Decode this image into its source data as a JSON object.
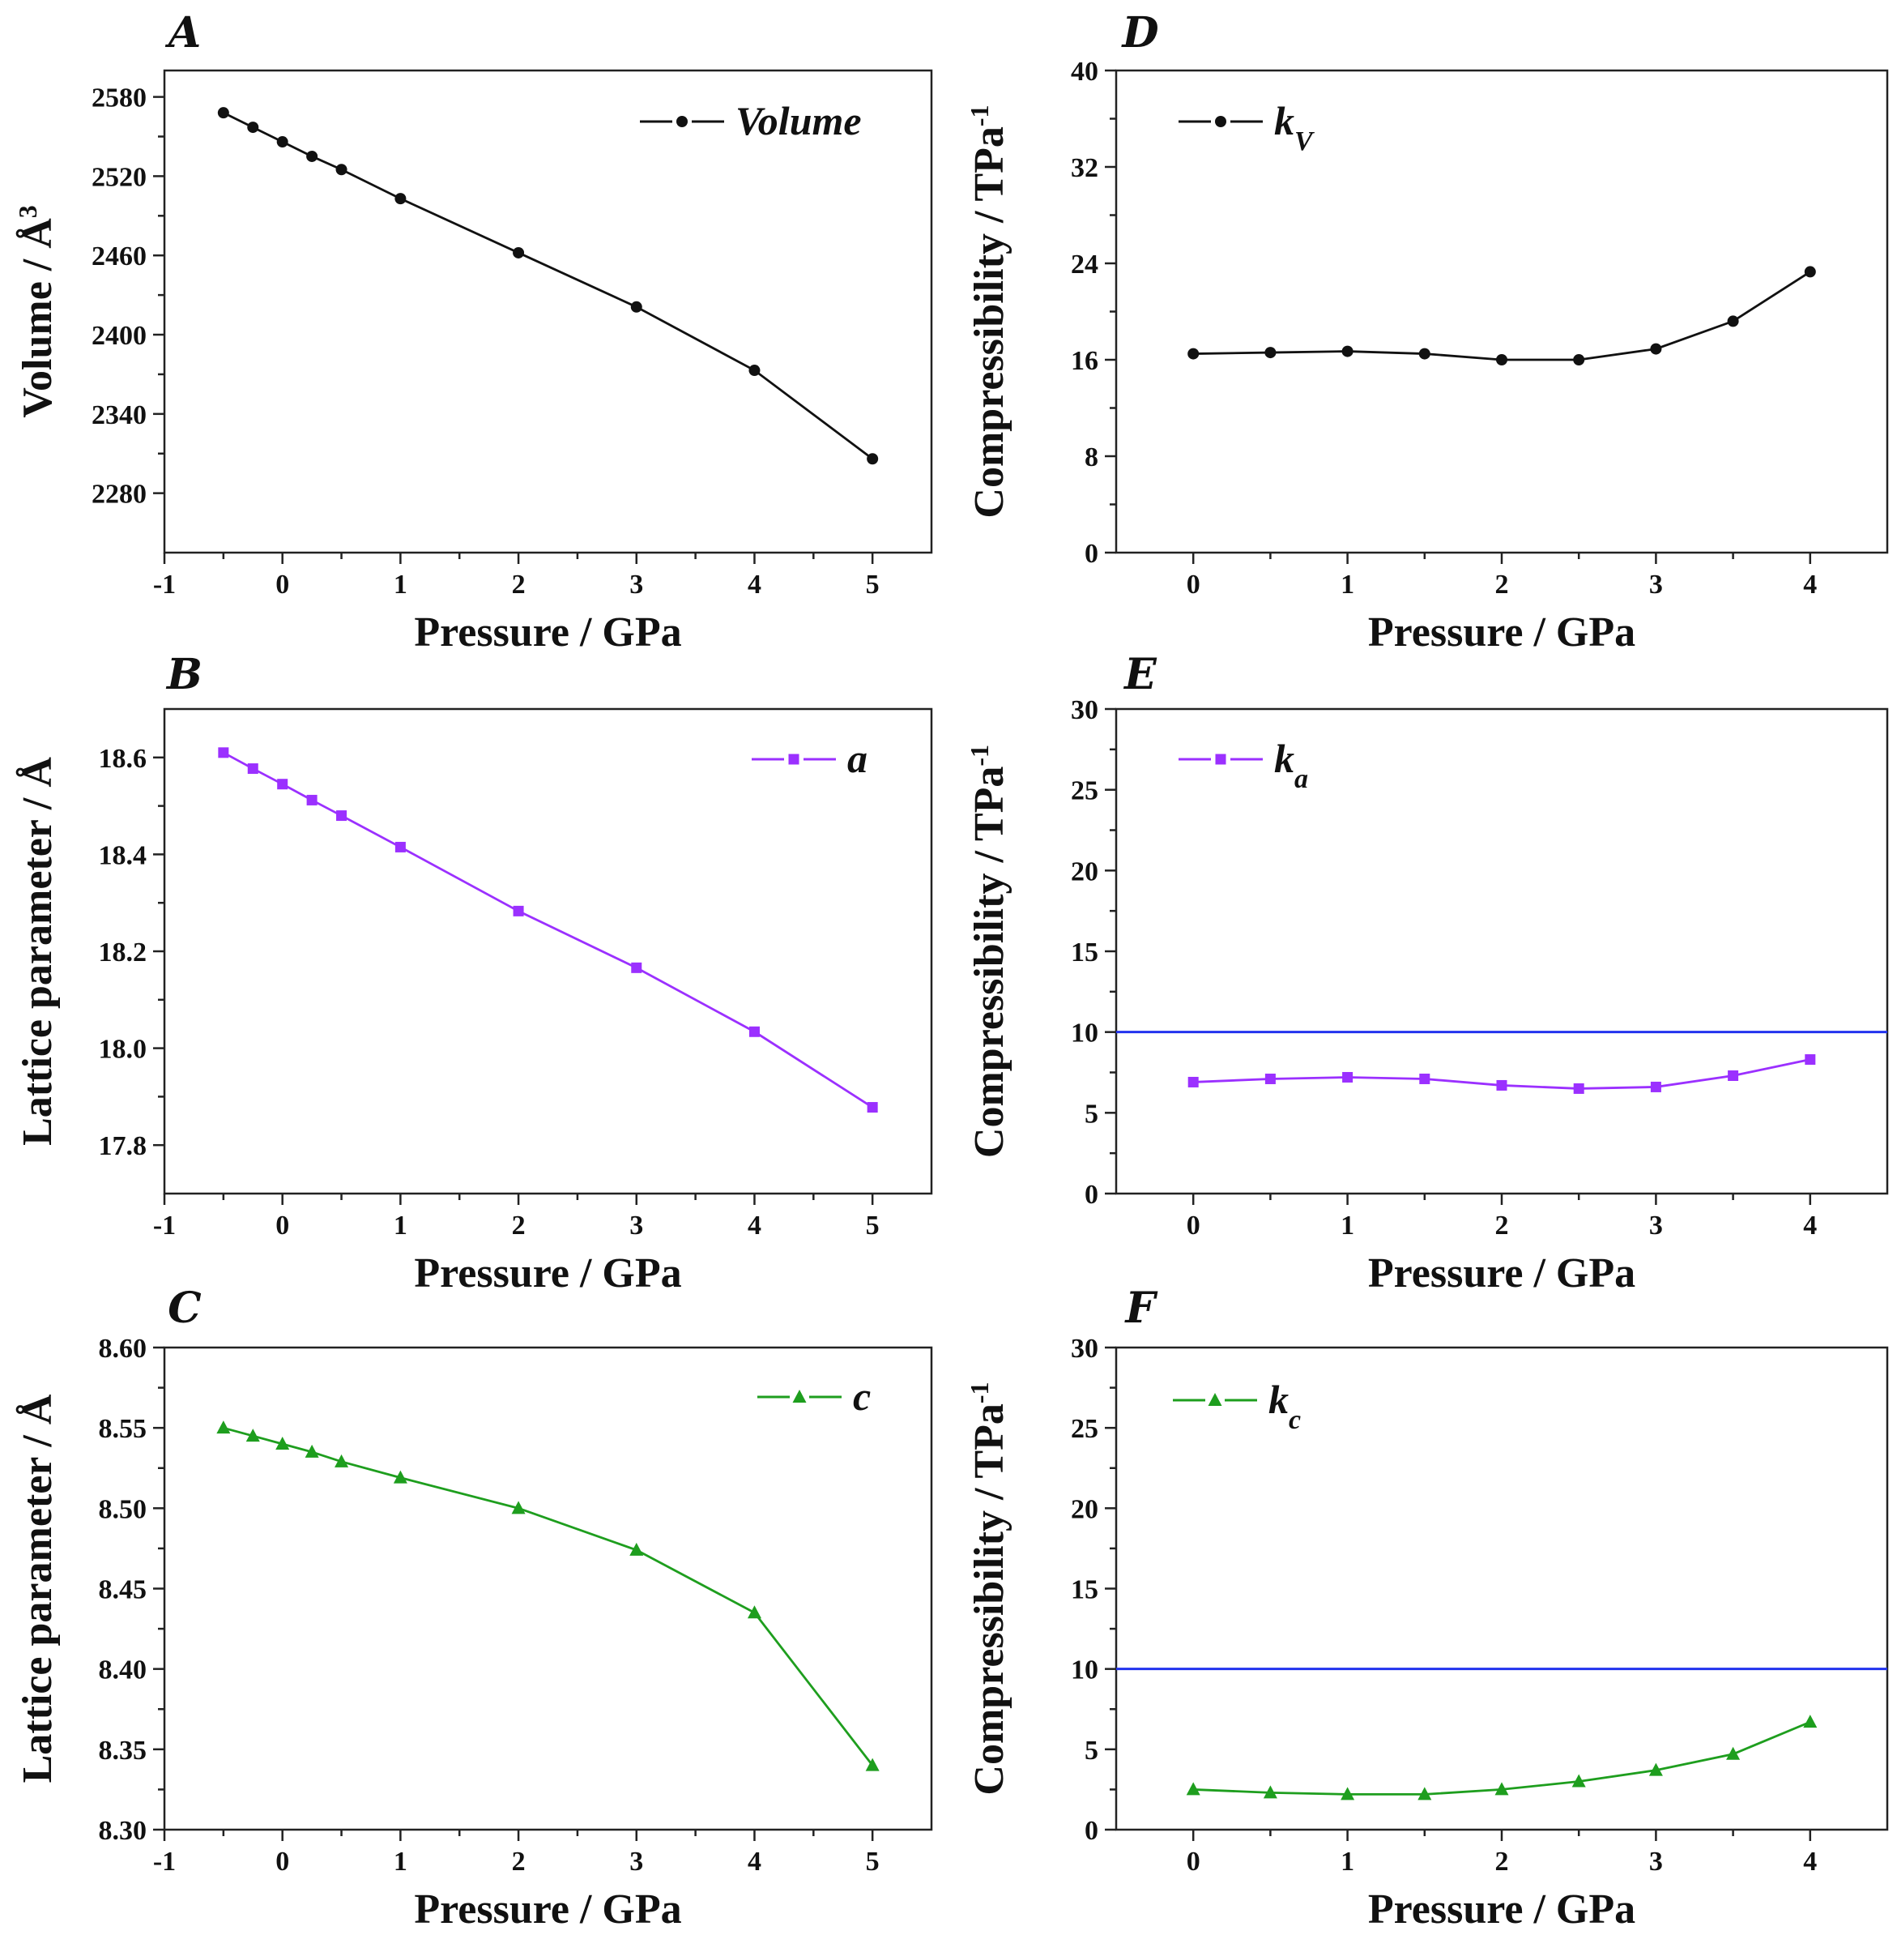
{
  "chart_data": [
    {
      "panel": "A",
      "type": "line",
      "xlabel": "Pressure / GPa",
      "ylabel": "Volume / Å",
      "ylabel_sup": "3",
      "xlim": [
        -1,
        5.5
      ],
      "ylim": [
        2235,
        2600
      ],
      "xticks": [
        -1,
        0,
        1,
        2,
        3,
        4,
        5
      ],
      "yticks": [
        2280,
        2340,
        2400,
        2460,
        2520,
        2580
      ],
      "series": [
        {
          "name": "Volume",
          "legend_sub": "",
          "color": "#111111",
          "marker": "circle",
          "x": [
            -0.5,
            -0.25,
            0,
            0.25,
            0.5,
            1,
            2,
            3,
            4,
            5
          ],
          "y": [
            2568,
            2557,
            2546,
            2535,
            2525,
            2503,
            2462,
            2421,
            2373,
            2306
          ]
        }
      ]
    },
    {
      "panel": "B",
      "type": "line",
      "xlabel": "Pressure / GPa",
      "ylabel": "Lattice parameter / Å",
      "ylabel_sup": "",
      "xlim": [
        -1,
        5.5
      ],
      "ylim": [
        17.7,
        18.7
      ],
      "xticks": [
        -1,
        0,
        1,
        2,
        3,
        4,
        5
      ],
      "yticks": [
        17.8,
        18.0,
        18.2,
        18.4,
        18.6
      ],
      "series": [
        {
          "name": "a",
          "legend_sub": "",
          "color": "#9b30ff",
          "marker": "square",
          "x": [
            -0.5,
            -0.25,
            0,
            0.25,
            0.5,
            1,
            2,
            3,
            4,
            5
          ],
          "y": [
            18.61,
            18.577,
            18.545,
            18.512,
            18.48,
            18.415,
            18.283,
            18.166,
            18.034,
            17.878
          ]
        }
      ]
    },
    {
      "panel": "C",
      "type": "line",
      "xlabel": "Pressure / GPa",
      "ylabel": "Lattice parameter / Å",
      "ylabel_sup": "",
      "xlim": [
        -1,
        5.5
      ],
      "ylim": [
        8.3,
        8.6
      ],
      "xticks": [
        -1,
        0,
        1,
        2,
        3,
        4,
        5
      ],
      "yticks": [
        8.3,
        8.35,
        8.4,
        8.45,
        8.5,
        8.55,
        8.6
      ],
      "series": [
        {
          "name": "c",
          "legend_sub": "",
          "color": "#1e9e1e",
          "marker": "triangle",
          "x": [
            -0.5,
            -0.25,
            0,
            0.25,
            0.5,
            1,
            2,
            3,
            4,
            5
          ],
          "y": [
            8.55,
            8.545,
            8.54,
            8.535,
            8.529,
            8.519,
            8.5,
            8.474,
            8.435,
            8.34
          ]
        }
      ]
    },
    {
      "panel": "D",
      "type": "line",
      "xlabel": "Pressure / GPa",
      "ylabel": "Compressibility / TPa",
      "ylabel_sup": "-1",
      "xlim": [
        -0.5,
        4.5
      ],
      "ylim": [
        0,
        40
      ],
      "xticks": [
        0,
        1,
        2,
        3,
        4
      ],
      "yticks": [
        0,
        8,
        16,
        24,
        32,
        40
      ],
      "reference_line": null,
      "series": [
        {
          "name": "k",
          "legend_sub": "V",
          "color": "#111111",
          "marker": "circle",
          "x": [
            0,
            0.5,
            1,
            1.5,
            2,
            2.5,
            3,
            3.5,
            4
          ],
          "y": [
            16.5,
            16.6,
            16.7,
            16.5,
            16.0,
            16.0,
            16.9,
            19.2,
            23.3
          ]
        }
      ]
    },
    {
      "panel": "E",
      "type": "line",
      "xlabel": "Pressure / GPa",
      "ylabel": "Compressibility / TPa",
      "ylabel_sup": "-1",
      "xlim": [
        -0.5,
        4.5
      ],
      "ylim": [
        0,
        30
      ],
      "xticks": [
        0,
        1,
        2,
        3,
        4
      ],
      "yticks": [
        0,
        5,
        10,
        15,
        20,
        25,
        30
      ],
      "reference_line": {
        "y": 10,
        "color": "#2233ee"
      },
      "series": [
        {
          "name": "k",
          "legend_sub": "a",
          "color": "#9b30ff",
          "marker": "square",
          "x": [
            0,
            0.5,
            1,
            1.5,
            2,
            2.5,
            3,
            3.5,
            4
          ],
          "y": [
            6.9,
            7.1,
            7.2,
            7.1,
            6.7,
            6.5,
            6.6,
            7.3,
            8.3
          ]
        }
      ]
    },
    {
      "panel": "F",
      "type": "line",
      "xlabel": "Pressure / GPa",
      "ylabel": "Compressibility / TPa",
      "ylabel_sup": "-1",
      "xlim": [
        -0.5,
        4.5
      ],
      "ylim": [
        0,
        30
      ],
      "xticks": [
        0,
        1,
        2,
        3,
        4
      ],
      "yticks": [
        0,
        5,
        10,
        15,
        20,
        25,
        30
      ],
      "reference_line": {
        "y": 10,
        "color": "#2233ee"
      },
      "series": [
        {
          "name": "k",
          "legend_sub": "c",
          "color": "#1e9e1e",
          "marker": "triangle",
          "x": [
            0,
            0.5,
            1,
            1.5,
            2,
            2.5,
            3,
            3.5,
            4
          ],
          "y": [
            2.5,
            2.3,
            2.2,
            2.2,
            2.5,
            3.0,
            3.7,
            4.7,
            6.7
          ]
        }
      ]
    }
  ]
}
